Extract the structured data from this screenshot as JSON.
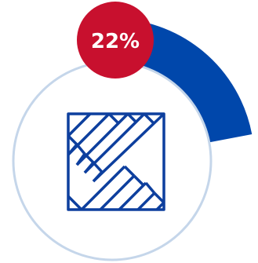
{
  "widget": {
    "percent_label": "22%",
    "progress_fraction": 0.22,
    "icon": "parquet-floor-icon",
    "colors": {
      "progress_arc": "#0047ab",
      "badge_fill": "#c8102e",
      "badge_text": "#ffffff",
      "ring_outline": "#c5d6ea",
      "icon_stroke": "#0d3f9e",
      "background": "#ffffff"
    }
  }
}
